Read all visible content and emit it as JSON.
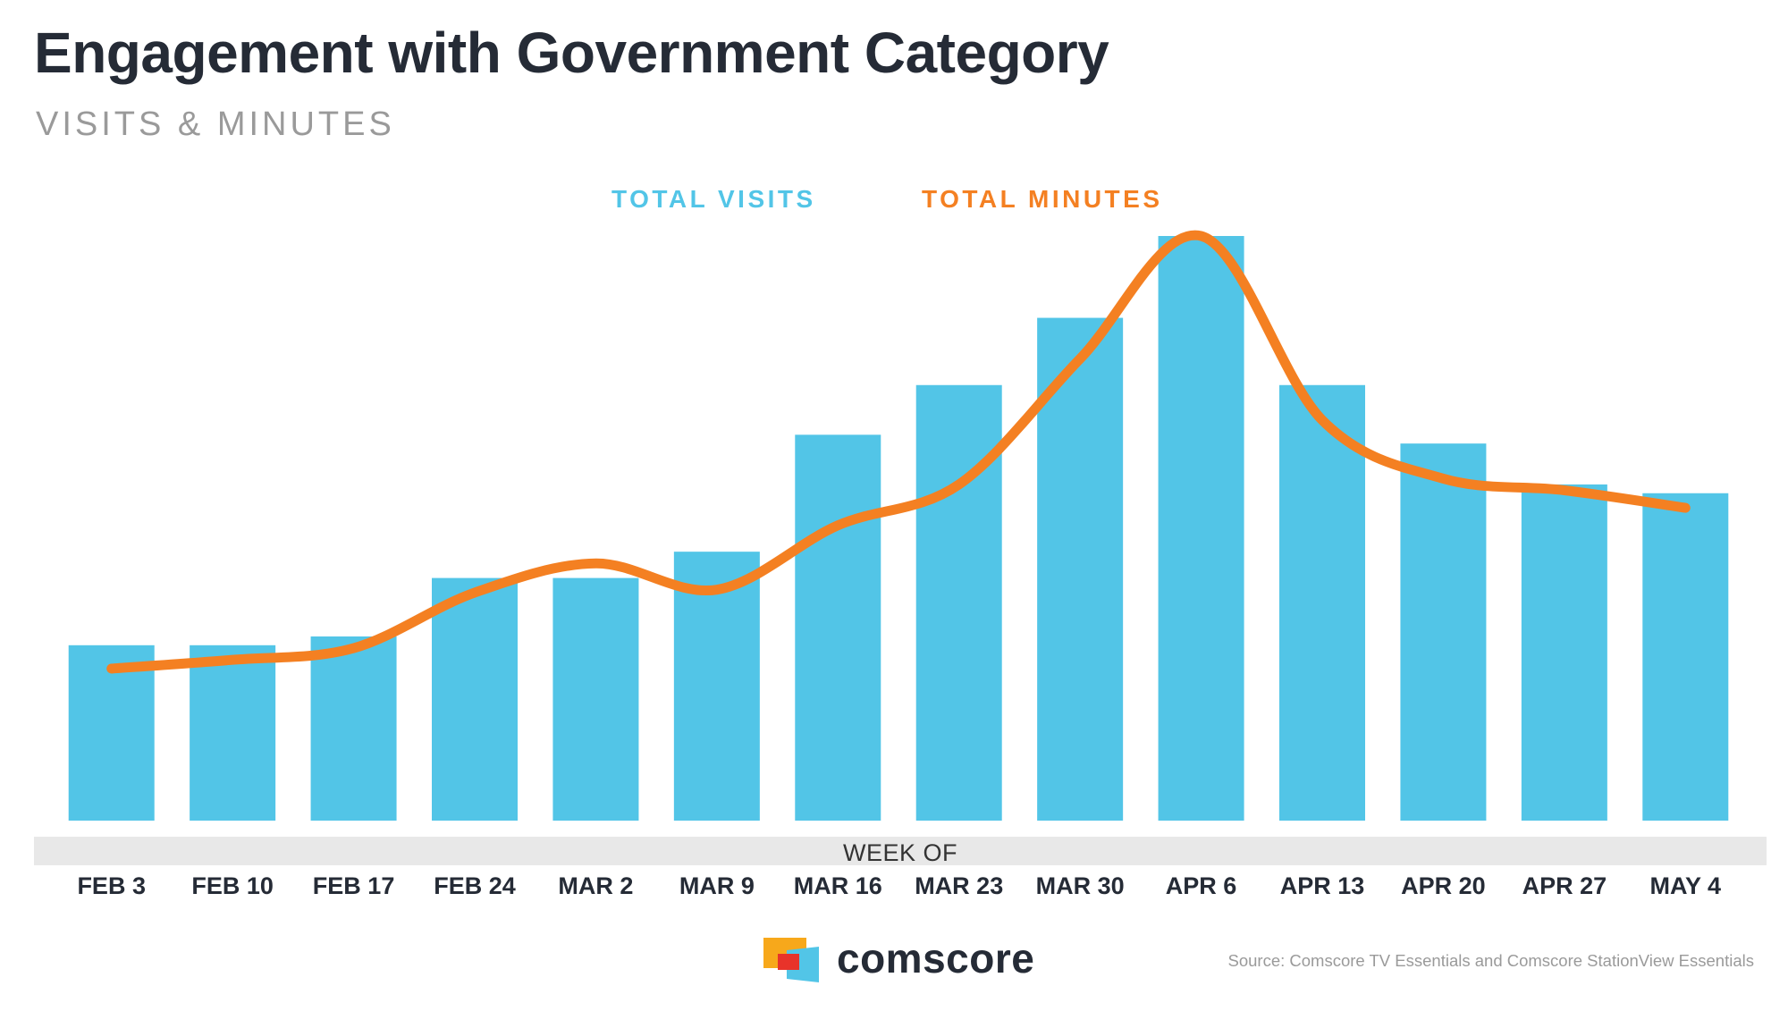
{
  "title": "Engagement with Government Category",
  "subtitle": "VISITS & MINUTES",
  "colors": {
    "visits": "#52c5e7",
    "minutes": "#f48022",
    "title": "#252b36",
    "muted": "#9a9a9a",
    "axis_band": "#e8e8e8"
  },
  "legend": {
    "visits_label": "TOTAL VISITS",
    "minutes_label": "TOTAL MINUTES"
  },
  "chart_data": {
    "type": "bar",
    "xlabel": "WEEK OF",
    "ylabel": "",
    "categories": [
      "FEB 3",
      "FEB 10",
      "FEB 17",
      "FEB 24",
      "MAR 2",
      "MAR 9",
      "MAR 16",
      "MAR 23",
      "MAR 30",
      "APR 6",
      "APR 13",
      "APR 20",
      "APR 27",
      "MAY 4"
    ],
    "series": [
      {
        "name": "TOTAL VISITS",
        "type": "bar",
        "values": [
          30,
          30,
          31.5,
          41.5,
          41.5,
          46,
          66,
          74.5,
          86,
          100,
          74.5,
          64.5,
          57.5,
          56
        ]
      },
      {
        "name": "TOTAL MINUTES",
        "type": "line",
        "values": [
          26,
          27.5,
          29.5,
          39,
          44,
          39.5,
          50.5,
          57.5,
          79,
          100,
          68.5,
          58.5,
          56.5,
          53.5
        ]
      }
    ],
    "ylim": [
      0,
      100
    ],
    "grid": false,
    "legend_position": "top-center"
  },
  "footer": {
    "logo_text": "comscore",
    "source": "Source: Comscore TV Essentials and Comscore StationView Essentials"
  }
}
